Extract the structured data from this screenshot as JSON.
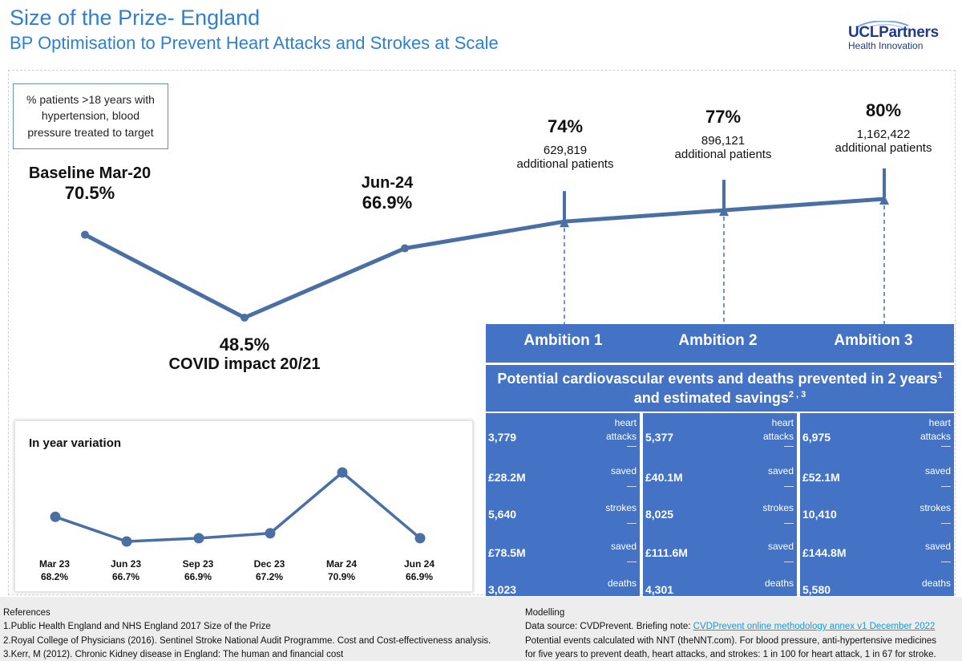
{
  "header": {
    "title": "Size of the Prize- England",
    "subtitle": "BP Optimisation to Prevent Heart Attacks and Strokes at Scale",
    "logo_main": "UCLPartners",
    "logo_sub": "Health Innovation"
  },
  "key_box": "% patients >18 years with hypertension, blood pressure treated to target",
  "chart_data": [
    {
      "type": "line",
      "categories": [
        "Baseline Mar-20",
        "COVID impact 20/21",
        "Jun-24",
        "Ambition 1",
        "Ambition 2",
        "Ambition 3"
      ],
      "values": [
        70.5,
        48.5,
        66.9,
        74,
        77,
        80
      ],
      "value_labels": [
        "70.5%",
        "48.5%",
        "66.9%",
        "74%",
        "77%",
        "80%"
      ],
      "additional_patients": [
        null,
        null,
        null,
        "629,819",
        "896,121",
        "1,162,422"
      ],
      "additional_label": "additional patients",
      "title": "",
      "xlabel": "",
      "ylabel": "",
      "grid": false
    },
    {
      "type": "line",
      "title": "In year variation",
      "categories": [
        "Mar 23",
        "Jun 23",
        "Sep 23",
        "Dec 23",
        "Mar 24",
        "Jun 24"
      ],
      "values": [
        68.2,
        66.7,
        66.9,
        67.2,
        70.9,
        66.9
      ],
      "value_labels": [
        "68.2%",
        "66.7%",
        "66.9%",
        "67.2%",
        "70.9%",
        "66.9%"
      ],
      "xlabel": "",
      "ylabel": "",
      "grid": false
    },
    {
      "type": "table",
      "title": "Potential cardiovascular events and deaths prevented in 2 years and estimated savings",
      "title_parts": [
        "Potential cardiovascular events and deaths prevented in 2 years",
        "1",
        " and estimated savings",
        "2 , 3"
      ],
      "columns": [
        "Ambition 1",
        "Ambition 2",
        "Ambition 3"
      ],
      "rows": [
        {
          "label": "heart attacks",
          "values": [
            "3,779",
            "5,377",
            "6,975"
          ]
        },
        {
          "label": "saved",
          "values": [
            "£28.2M",
            "£40.1M",
            "£52.1M"
          ]
        },
        {
          "label": "strokes",
          "values": [
            "5,640",
            "8,025",
            "10,410"
          ]
        },
        {
          "label": "saved",
          "values": [
            "£78.5M",
            "£111.6M",
            "£144.8M"
          ]
        },
        {
          "label": "deaths",
          "values": [
            "3,023",
            "4,301",
            "5,580"
          ]
        }
      ]
    }
  ],
  "colors": {
    "accent": "#4472c4",
    "line": "#4a6fa5",
    "title": "#2f80d0"
  },
  "references": {
    "heading": "References",
    "items": [
      "1.Public Health England and NHS England 2017  Size of the Prize",
      "2.Royal College of Physicians (2016). Sentinel Stroke National Audit Programme. Cost and Cost-effectiveness analysis.",
      "3.Kerr, M (2012). Chronic Kidney disease in England: The human and financial cost"
    ]
  },
  "modelling": {
    "heading": "Modelling",
    "source_prefix": "Data source: CVDPrevent. Briefing note: ",
    "source_link": "CVDPrevent online methodology annex v1 December 2022",
    "line2": "Potential events calculated with NNT (theNNT.com). For blood pressure, anti-hypertensive medicines",
    "line3": "for five years to prevent death, heart attacks, and strokes: 1 in 100 for heart attack, 1 in 67 for stroke."
  }
}
